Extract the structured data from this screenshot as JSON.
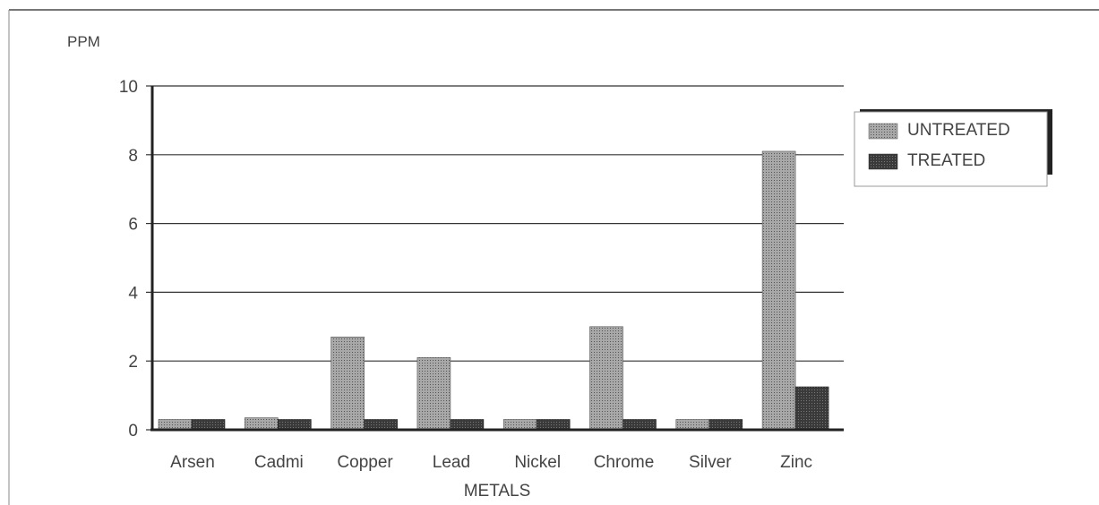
{
  "chart_data": {
    "type": "bar",
    "ylabel": "PPM",
    "xlabel": "METALS",
    "ylim": [
      0,
      10
    ],
    "yticks": [
      0,
      2,
      4,
      6,
      8,
      10
    ],
    "grid": true,
    "legend_position": "top-right",
    "categories": [
      "Arsen",
      "Cadmi",
      "Copper",
      "Lead",
      "Nickel",
      "Chrome",
      "Silver",
      "Zinc"
    ],
    "series": [
      {
        "name": "UNTREATED",
        "values": [
          0.3,
          0.35,
          2.7,
          2.1,
          0.3,
          3.0,
          0.3,
          8.1
        ]
      },
      {
        "name": "TREATED",
        "values": [
          0.3,
          0.3,
          0.3,
          0.3,
          0.3,
          0.3,
          0.3,
          1.25
        ]
      }
    ],
    "colors": {
      "UNTREATED": "#8c8c8c",
      "TREATED": "#3c3c3c"
    }
  }
}
